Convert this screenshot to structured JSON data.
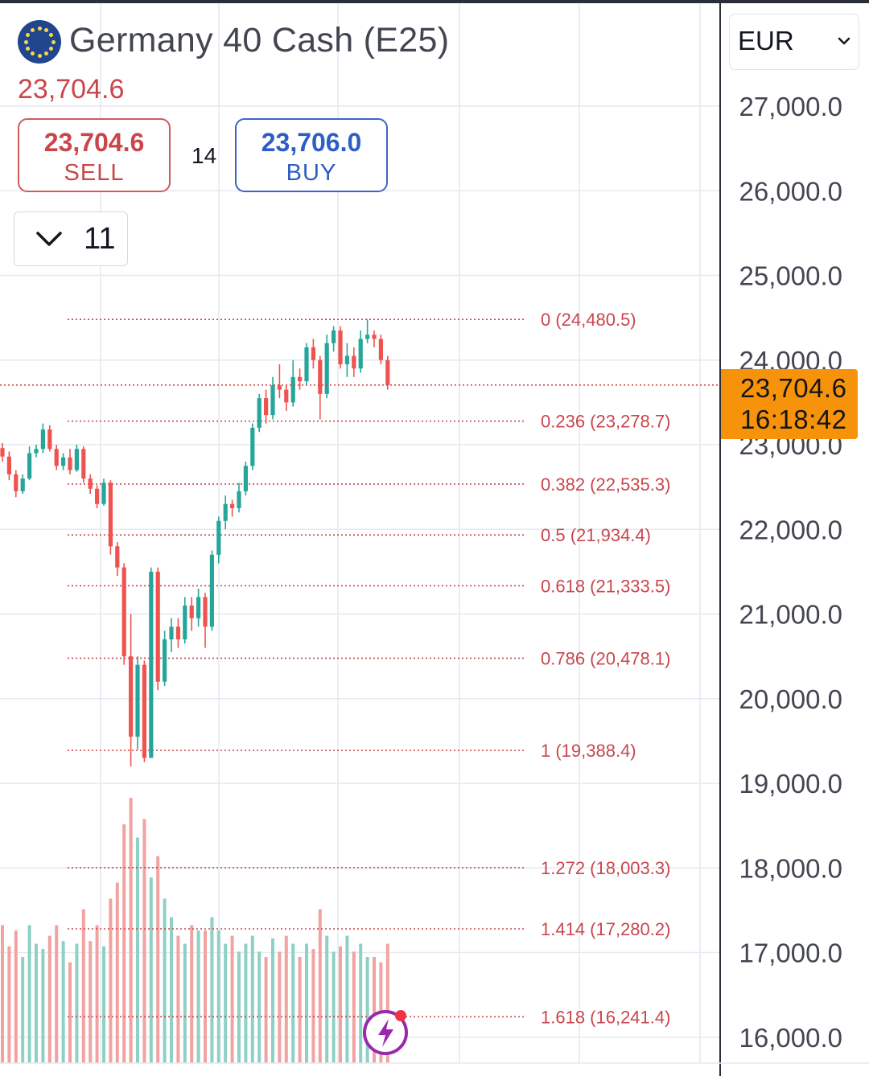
{
  "header": {
    "title": "Germany 40 Cash (E25)",
    "last_price": "23,704.6",
    "flag_icon": "eu-flag-icon"
  },
  "trade": {
    "sell_price": "23,704.6",
    "sell_label": "SELL",
    "buy_price": "23,706.0",
    "buy_label": "BUY",
    "spread": "14"
  },
  "interval": {
    "value": "11",
    "icon": "chevron-down-icon"
  },
  "currency": {
    "value": "EUR",
    "icon": "chevron-down-icon"
  },
  "price_tag": {
    "price": "23,704.6",
    "countdown": "16:18:42"
  },
  "colors": {
    "up": "#26a69a",
    "down": "#ef5350",
    "fib": "#c8474e",
    "tag": "#f6930b"
  },
  "chart_data": {
    "type": "candlestick",
    "y_axis": {
      "ticks": [
        "16,000.0",
        "17,000.0",
        "18,000.0",
        "19,000.0",
        "20,000.0",
        "21,000.0",
        "22,000.0",
        "23,000.0",
        "24,000.0",
        "25,000.0",
        "26,000.0",
        "27,000.0"
      ],
      "range": [
        15800,
        27300
      ]
    },
    "current_price": 23704.6,
    "fibonacci": {
      "high": 24480.5,
      "low": 19388.4,
      "levels": [
        {
          "label": "0 (24,480.5)",
          "value": 24480.5
        },
        {
          "label": "0.236 (23,278.7)",
          "value": 23278.7
        },
        {
          "label": "0.382 (22,535.3)",
          "value": 22535.3
        },
        {
          "label": "0.5 (21,934.4)",
          "value": 21934.4
        },
        {
          "label": "0.618 (21,333.5)",
          "value": 21333.5
        },
        {
          "label": "0.786 (20,478.1)",
          "value": 20478.1
        },
        {
          "label": "1 (19,388.4)",
          "value": 19388.4
        },
        {
          "label": "1.272 (18,003.3)",
          "value": 18003.3
        },
        {
          "label": "1.414 (17,280.2)",
          "value": 17280.2
        },
        {
          "label": "1.618 (16,241.4)",
          "value": 16241.4
        }
      ]
    },
    "candles": [
      [
        22960,
        22860,
        23020,
        22800,
        0.52
      ],
      [
        22860,
        22650,
        22920,
        22580,
        0.44
      ],
      [
        22650,
        22450,
        22700,
        22380,
        0.5
      ],
      [
        22450,
        22600,
        22650,
        22420,
        0.4
      ],
      [
        22600,
        22900,
        22980,
        22580,
        0.52
      ],
      [
        22900,
        22950,
        23000,
        22850,
        0.45
      ],
      [
        22950,
        23180,
        23250,
        22900,
        0.43
      ],
      [
        23180,
        22950,
        23230,
        22920,
        0.48
      ],
      [
        22950,
        22750,
        23000,
        22700,
        0.52
      ],
      [
        22750,
        22850,
        22900,
        22700,
        0.46
      ],
      [
        22850,
        22700,
        22950,
        22650,
        0.38
      ],
      [
        22700,
        22950,
        23000,
        22680,
        0.45
      ],
      [
        22950,
        22600,
        22980,
        22550,
        0.58
      ],
      [
        22600,
        22480,
        22650,
        22420,
        0.46
      ],
      [
        22480,
        22300,
        22520,
        22250,
        0.52
      ],
      [
        22300,
        22550,
        22600,
        22280,
        0.44
      ],
      [
        22550,
        21800,
        22580,
        21700,
        0.62
      ],
      [
        21800,
        21550,
        21850,
        21450,
        0.68
      ],
      [
        21550,
        20500,
        21600,
        20400,
        0.9
      ],
      [
        20500,
        19550,
        21000,
        19200,
        1.0
      ],
      [
        19550,
        20400,
        20500,
        19400,
        0.85
      ],
      [
        20400,
        19300,
        20450,
        19250,
        0.92
      ],
      [
        19300,
        21500,
        21550,
        19300,
        0.7
      ],
      [
        21500,
        20200,
        21550,
        20100,
        0.78
      ],
      [
        20200,
        20700,
        20800,
        20150,
        0.62
      ],
      [
        20700,
        20850,
        20950,
        20550,
        0.55
      ],
      [
        20850,
        20700,
        20950,
        20600,
        0.48
      ],
      [
        20700,
        21100,
        21200,
        20650,
        0.45
      ],
      [
        21100,
        20950,
        21200,
        20800,
        0.52
      ],
      [
        20950,
        21200,
        21300,
        20850,
        0.5
      ],
      [
        21200,
        20850,
        21250,
        20600,
        0.5
      ],
      [
        20850,
        21700,
        21750,
        20800,
        0.55
      ],
      [
        21700,
        22100,
        22150,
        21600,
        0.5
      ],
      [
        22100,
        22300,
        22400,
        22000,
        0.45
      ],
      [
        22300,
        22250,
        22350,
        22150,
        0.48
      ],
      [
        22250,
        22450,
        22550,
        22200,
        0.42
      ],
      [
        22450,
        22750,
        22800,
        22400,
        0.45
      ],
      [
        22750,
        23200,
        23250,
        22700,
        0.48
      ],
      [
        23200,
        23550,
        23600,
        23150,
        0.42
      ],
      [
        23550,
        23350,
        23650,
        23250,
        0.4
      ],
      [
        23350,
        23700,
        23800,
        23300,
        0.47
      ],
      [
        23700,
        23650,
        23950,
        23550,
        0.42
      ],
      [
        23650,
        23500,
        23700,
        23400,
        0.48
      ],
      [
        23500,
        23800,
        24000,
        23450,
        0.45
      ],
      [
        23800,
        23750,
        23900,
        23650,
        0.4
      ],
      [
        23750,
        24150,
        24200,
        23700,
        0.45
      ],
      [
        24150,
        24000,
        24250,
        23900,
        0.43
      ],
      [
        24000,
        23600,
        24050,
        23300,
        0.58
      ],
      [
        23600,
        24200,
        24300,
        23550,
        0.48
      ],
      [
        24200,
        24350,
        24400,
        24100,
        0.42
      ],
      [
        24350,
        23950,
        24400,
        23900,
        0.44
      ],
      [
        23950,
        24050,
        24200,
        23800,
        0.48
      ],
      [
        24050,
        23900,
        24150,
        23800,
        0.42
      ],
      [
        23900,
        24250,
        24350,
        23850,
        0.45
      ],
      [
        24250,
        24300,
        24480,
        24200,
        0.4
      ],
      [
        24300,
        24250,
        24350,
        24150,
        0.4
      ],
      [
        24250,
        24000,
        24300,
        23950,
        0.38
      ],
      [
        24000,
        23704.6,
        24050,
        23650,
        0.45
      ]
    ]
  },
  "floating_action": {
    "icon": "lightning-icon"
  }
}
